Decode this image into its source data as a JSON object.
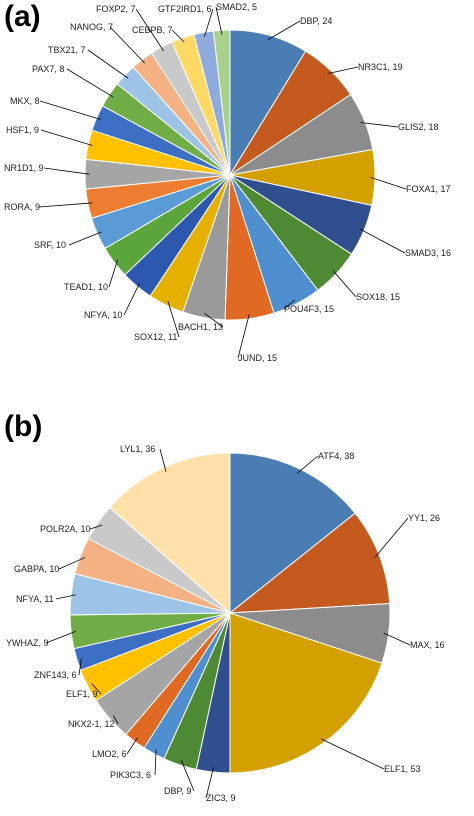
{
  "panels": [
    {
      "letter": "(a)"
    },
    {
      "letter": "(b)"
    }
  ],
  "chart_data": [
    {
      "type": "pie",
      "start_angle_deg": 0,
      "direction": "clockwise",
      "slices": [
        {
          "label": "DBP, 24",
          "value": 24,
          "color": "#4A7DB3"
        },
        {
          "label": "NR3C1, 19",
          "value": 19,
          "color": "#C55A1E"
        },
        {
          "label": "GLIS2, 18",
          "value": 18,
          "color": "#8C8C8C"
        },
        {
          "label": "FOXA1, 17",
          "value": 17,
          "color": "#D4A000"
        },
        {
          "label": "SMAD3, 16",
          "value": 16,
          "color": "#2F4F8F"
        },
        {
          "label": "SOX18, 15",
          "value": 15,
          "color": "#4E8A34"
        },
        {
          "label": "POU4F3, 15",
          "value": 15,
          "color": "#4F8FD0"
        },
        {
          "label": "JUND, 15",
          "value": 15,
          "color": "#E06A24"
        },
        {
          "label": "BACH1, 13",
          "value": 13,
          "color": "#9A9A9A"
        },
        {
          "label": "SOX12, 11",
          "value": 11,
          "color": "#E5B000"
        },
        {
          "label": "NFYA, 10",
          "value": 10,
          "color": "#2D58B0"
        },
        {
          "label": "TEAD1, 10",
          "value": 10,
          "color": "#5BA63C"
        },
        {
          "label": "SRF, 10",
          "value": 10,
          "color": "#5B9BD5"
        },
        {
          "label": "RORA, 9",
          "value": 9,
          "color": "#ED7D31"
        },
        {
          "label": "NR1D1, 9",
          "value": 9,
          "color": "#A5A5A5"
        },
        {
          "label": "HSF1, 9",
          "value": 9,
          "color": "#FFC000"
        },
        {
          "label": "MKX, 8",
          "value": 8,
          "color": "#3C6FC4"
        },
        {
          "label": "PAX7, 8",
          "value": 8,
          "color": "#70AD47"
        },
        {
          "label": "TBX21, 7",
          "value": 7,
          "color": "#9DC3E6"
        },
        {
          "label": "NANOG, 7",
          "value": 7,
          "color": "#F4B183"
        },
        {
          "label": "FOXP2, 7",
          "value": 7,
          "color": "#C9C9C9"
        },
        {
          "label": "CEBPB, 7",
          "value": 7,
          "color": "#FFD966"
        },
        {
          "label": "GTF2IRD1, 6",
          "value": 6,
          "color": "#8FAADC"
        },
        {
          "label": "SMAD2, 5",
          "value": 5,
          "color": "#A9D18E"
        }
      ]
    },
    {
      "type": "pie",
      "start_angle_deg": 0,
      "direction": "clockwise",
      "slices": [
        {
          "label": "ATF4, 38",
          "value": 38,
          "color": "#4A7DB3"
        },
        {
          "label": "YY1, 26",
          "value": 26,
          "color": "#C55A1E"
        },
        {
          "label": "MAX, 16",
          "value": 16,
          "color": "#8C8C8C"
        },
        {
          "label": "ELF1, 53",
          "value": 53,
          "color": "#D4A000"
        },
        {
          "label": "ZIC3, 9",
          "value": 9,
          "color": "#2F4F8F"
        },
        {
          "label": "DBP, 9",
          "value": 9,
          "color": "#4E8A34"
        },
        {
          "label": "PIK3C3, 6",
          "value": 6,
          "color": "#4F8FD0"
        },
        {
          "label": "LMO2, 6",
          "value": 6,
          "color": "#E06A24"
        },
        {
          "label": "NKX2-1, 12",
          "value": 12,
          "color": "#A5A5A5"
        },
        {
          "label": "ELF1, 9",
          "value": 9,
          "color": "#FFC000"
        },
        {
          "label": "ZNF143, 6",
          "value": 6,
          "color": "#3C6FC4"
        },
        {
          "label": "YWHAZ, 9",
          "value": 9,
          "color": "#70AD47"
        },
        {
          "label": "NFYA, 11",
          "value": 11,
          "color": "#9DC3E6"
        },
        {
          "label": "GABPA, 10",
          "value": 10,
          "color": "#F4B183"
        },
        {
          "label": "POLR2A, 10",
          "value": 10,
          "color": "#C9C9C9"
        },
        {
          "label": "LYL1, 36",
          "value": 36,
          "color": "#FFE0A8"
        }
      ]
    }
  ]
}
